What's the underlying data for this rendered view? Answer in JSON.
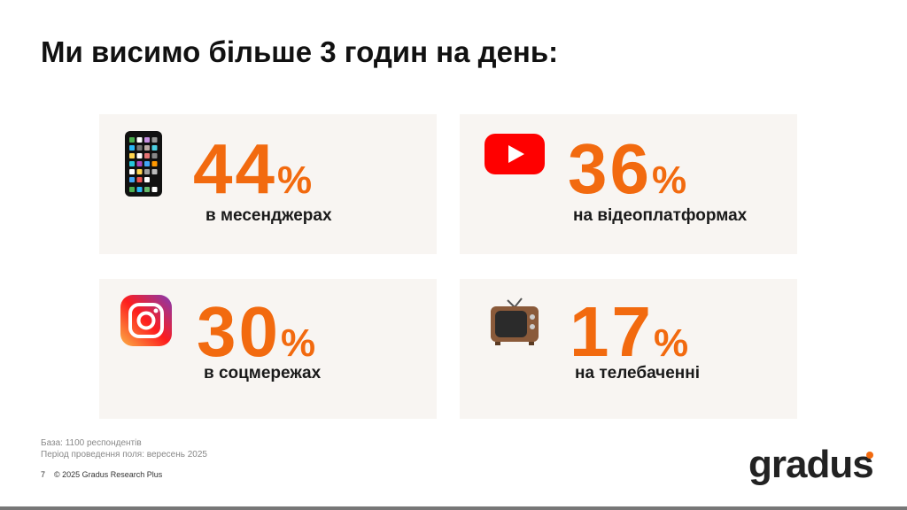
{
  "title": "Ми висимо більше 3 годин на день:",
  "accent_color": "#f26a0f",
  "cards": [
    {
      "icon": "smartphone-icon",
      "value": "44",
      "unit": "%",
      "label": "в месенджерах"
    },
    {
      "icon": "youtube-icon",
      "value": "36",
      "unit": "%",
      "label": "на відеоплатформах"
    },
    {
      "icon": "instagram-icon",
      "value": "30",
      "unit": "%",
      "label": "в соцмережах"
    },
    {
      "icon": "television-icon",
      "value": "17",
      "unit": "%",
      "label": "на телебаченні"
    }
  ],
  "footer": {
    "base": "База: 1100 респондентів",
    "period": "Період проведення поля: вересень 2025",
    "page": "7",
    "copyright": "© 2025 Gradus Research Plus",
    "logo": "gradus"
  }
}
